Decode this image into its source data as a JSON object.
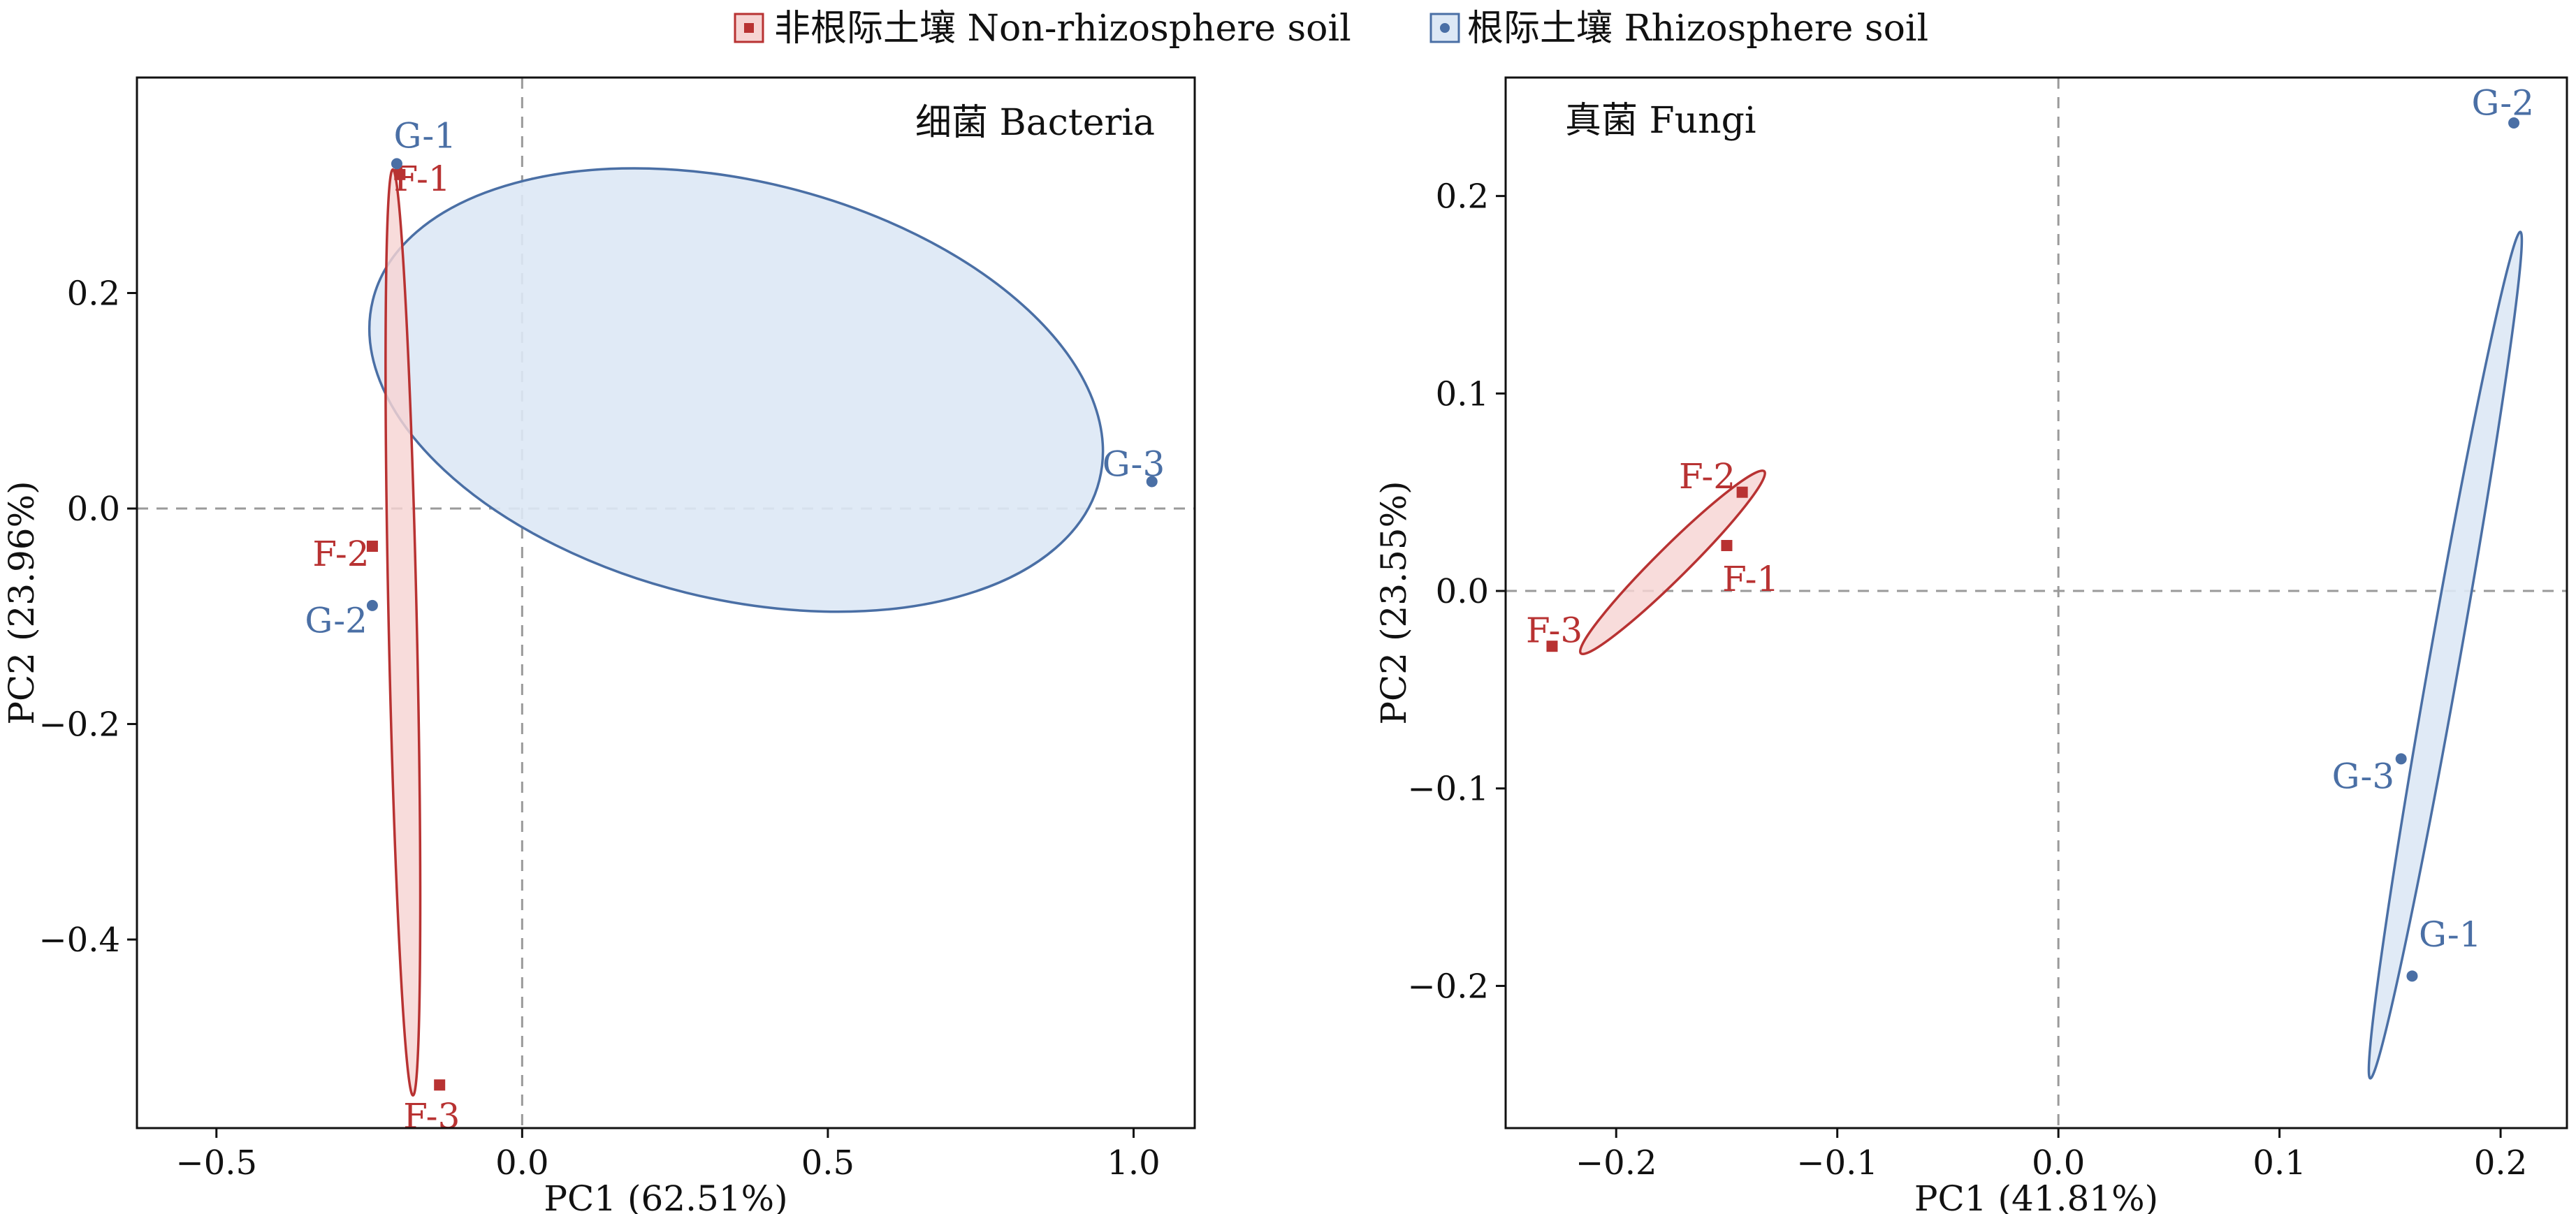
{
  "legend": {
    "items": [
      {
        "label": "非根际土壤 Non-rhizosphere soil",
        "color": "#b83232",
        "fill": "#f6d4d3",
        "marker": "square"
      },
      {
        "label": "根际土壤 Rhizosphere soil",
        "color": "#4a6fa5",
        "fill": "#dde8f5",
        "marker": "circle"
      }
    ]
  },
  "chart_data": [
    {
      "type": "scatter",
      "panel_label": "细菌 Bacteria",
      "xlabel": "PC1 (62.51%)",
      "ylabel": "PC2 (23.96%)",
      "xlim": [
        -0.63,
        1.1
      ],
      "ylim": [
        -0.575,
        0.4
      ],
      "xticks": [
        -0.5,
        0.0,
        0.5,
        1.0
      ],
      "xtick_labels": [
        "−0.5",
        "0.0",
        "0.5",
        "1.0"
      ],
      "yticks": [
        -0.4,
        -0.2,
        0.0,
        0.2
      ],
      "ytick_labels": [
        "−0.4",
        "−0.2",
        "0.0",
        "0.2"
      ],
      "reference_lines": {
        "x": 0,
        "y": 0
      },
      "series": [
        {
          "name": "非根际土壤 Non-rhizosphere soil",
          "color": "#b83232",
          "fill": "#f6d4d3",
          "marker": "square",
          "points": [
            {
              "label": "F-1",
              "x": -0.2,
              "y": 0.31
            },
            {
              "label": "F-2",
              "x": -0.245,
              "y": -0.035
            },
            {
              "label": "F-3",
              "x": -0.135,
              "y": -0.535
            }
          ],
          "ellipse": {
            "cx": -0.195,
            "cy": -0.115,
            "rx": 0.43,
            "ry": 0.023,
            "angle_deg": -87.8
          }
        },
        {
          "name": "根际土壤 Rhizosphere soil",
          "color": "#4a6fa5",
          "fill": "#dde8f5",
          "marker": "circle",
          "points": [
            {
              "label": "G-1",
              "x": -0.205,
              "y": 0.32
            },
            {
              "label": "G-2",
              "x": -0.245,
              "y": -0.09
            },
            {
              "label": "G-3",
              "x": 1.03,
              "y": 0.025
            }
          ],
          "ellipse": {
            "cx": 0.35,
            "cy": 0.11,
            "rx": 0.6,
            "ry": 0.195,
            "angle_deg": -8
          }
        }
      ]
    },
    {
      "type": "scatter",
      "panel_label": "真菌 Fungi",
      "xlabel": "PC1 (41.81%)",
      "ylabel": "PC2 (23.55%)",
      "xlim": [
        -0.25,
        0.23
      ],
      "ylim": [
        -0.272,
        0.26
      ],
      "xticks": [
        -0.2,
        -0.1,
        0.0,
        0.1,
        0.2
      ],
      "xtick_labels": [
        "−0.2",
        "−0.1",
        "0.0",
        "0.1",
        "0.2"
      ],
      "yticks": [
        -0.2,
        -0.1,
        0.0,
        0.1,
        0.2
      ],
      "ytick_labels": [
        "−0.2",
        "−0.1",
        "0.0",
        "0.1",
        "0.2"
      ],
      "reference_lines": {
        "x": 0,
        "y": 0
      },
      "series": [
        {
          "name": "非根际土壤 Non-rhizosphere soil",
          "color": "#b83232",
          "fill": "#f6d4d3",
          "marker": "square",
          "points": [
            {
              "label": "F-1",
              "x": -0.15,
              "y": 0.023
            },
            {
              "label": "F-2",
              "x": -0.143,
              "y": 0.05
            },
            {
              "label": "F-3",
              "x": -0.229,
              "y": -0.028
            }
          ],
          "ellipse": {
            "cx": -0.1745,
            "cy": 0.0145,
            "rx": 0.062,
            "ry": 0.0075,
            "angle_deg": 48
          }
        },
        {
          "name": "根际土壤 Rhizosphere soil",
          "color": "#4a6fa5",
          "fill": "#dde8f5",
          "marker": "circle",
          "points": [
            {
              "label": "G-1",
              "x": 0.16,
              "y": -0.195
            },
            {
              "label": "G-2",
              "x": 0.206,
              "y": 0.237
            },
            {
              "label": "G-3",
              "x": 0.155,
              "y": -0.085
            }
          ],
          "ellipse": {
            "cx": 0.175,
            "cy": -0.0325,
            "rx": 0.217,
            "ry": 0.0068,
            "angle_deg": 81
          }
        }
      ]
    }
  ]
}
